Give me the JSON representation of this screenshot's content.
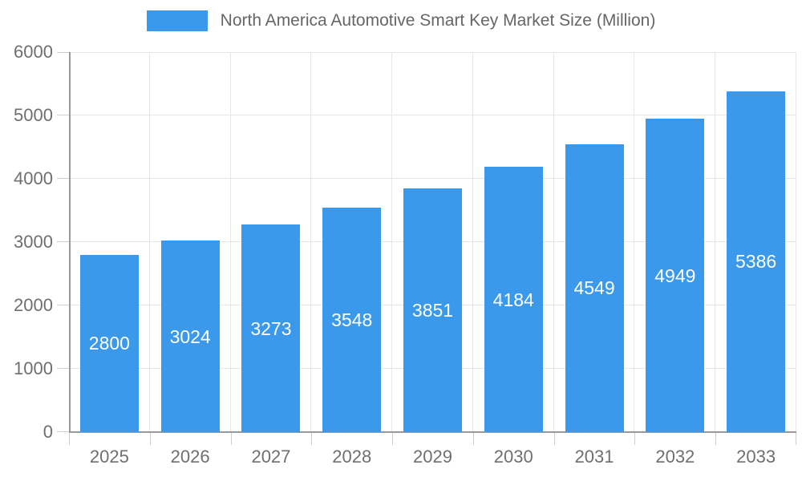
{
  "legend": {
    "label": "North America Automotive Smart Key Market Size (Million)",
    "swatch_color": "#3b99ec"
  },
  "chart_data": {
    "type": "bar",
    "title": "North America Automotive Smart Key Market Size (Million)",
    "categories": [
      "2025",
      "2026",
      "2027",
      "2028",
      "2029",
      "2030",
      "2031",
      "2032",
      "2033"
    ],
    "values": [
      2800,
      3024,
      3273,
      3548,
      3851,
      4184,
      4549,
      4949,
      5386
    ],
    "xlabel": "",
    "ylabel": "",
    "ylim": [
      0,
      6000
    ],
    "yticks": [
      0,
      1000,
      2000,
      3000,
      4000,
      5000,
      6000
    ],
    "grid": true,
    "legend_position": "top-center",
    "bar_color": "#3b99ec",
    "bar_label_color": "#ffffff",
    "axis_text_color": "#6f6f6f",
    "gridline_color": "#e6e6e6",
    "tick_color": "#cfcfcf",
    "axis_line_color": "#999999"
  }
}
